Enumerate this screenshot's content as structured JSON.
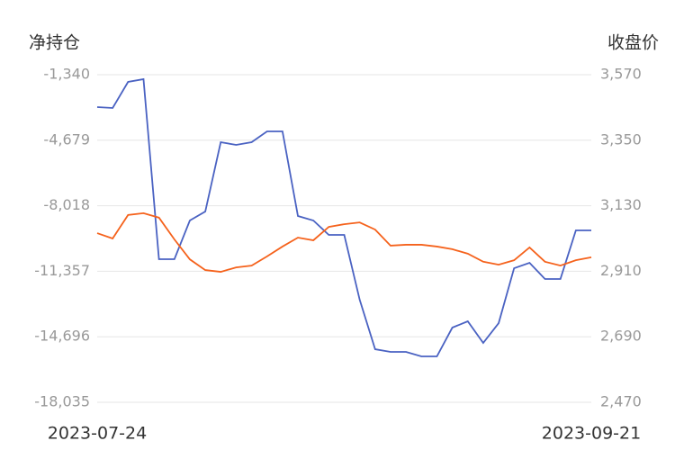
{
  "chart_data": {
    "type": "line",
    "ylabel": "净持仓",
    "y2label": "收盘价",
    "categories": [
      "2023-07-24",
      null,
      null,
      null,
      null,
      null,
      null,
      null,
      null,
      null,
      null,
      null,
      null,
      null,
      null,
      null,
      null,
      null,
      null,
      null,
      null,
      null,
      null,
      null,
      null,
      null,
      null,
      null,
      null,
      null,
      null,
      null,
      "2023-09-21"
    ],
    "series": [
      {
        "color": "#4a62c2",
        "values": [
          -2991,
          -3037,
          -1707,
          -1569,
          -10743,
          -10743,
          -8771,
          -8312,
          -4780,
          -4918,
          -4780,
          -4230,
          -4230,
          -8542,
          -8771,
          -9505,
          -9505,
          -12808,
          -15330,
          -15468,
          -15468,
          -15697,
          -15697,
          -14229,
          -13908,
          -15009,
          -14000,
          -11202,
          -10927,
          -11752,
          -11752,
          -9276,
          -9276
        ]
      },
      {
        "color": "#f5621c",
        "axis": "y2",
        "values": [
          3038,
          3020,
          3099,
          3105,
          3090,
          3017,
          2950,
          2914,
          2908,
          2923,
          2929,
          2960,
          2993,
          3023,
          3014,
          3059,
          3068,
          3074,
          3050,
          2996,
          2999,
          2999,
          2993,
          2984,
          2969,
          2942,
          2932,
          2947,
          2990,
          2942,
          2929,
          2947,
          2957
        ]
      }
    ],
    "ylim": [
      -18035,
      -1340
    ],
    "yticks": [
      {
        "value": -1340,
        "label": "-1,340"
      },
      {
        "value": -4679,
        "label": "-4,679"
      },
      {
        "value": -8018,
        "label": "-8,018"
      },
      {
        "value": -11357,
        "label": "-11,357"
      },
      {
        "value": -14696,
        "label": "-14,696"
      },
      {
        "value": -18035,
        "label": "-18,035"
      }
    ],
    "y2lim": [
      2470,
      3570
    ],
    "y2ticks": [
      {
        "value": 3570,
        "label": "3,570"
      },
      {
        "value": 3350,
        "label": "3,350"
      },
      {
        "value": 3130,
        "label": "3,130"
      },
      {
        "value": 2910,
        "label": "2,910"
      },
      {
        "value": 2690,
        "label": "2,690"
      },
      {
        "value": 2470,
        "label": "2,470"
      }
    ],
    "grid": true
  }
}
